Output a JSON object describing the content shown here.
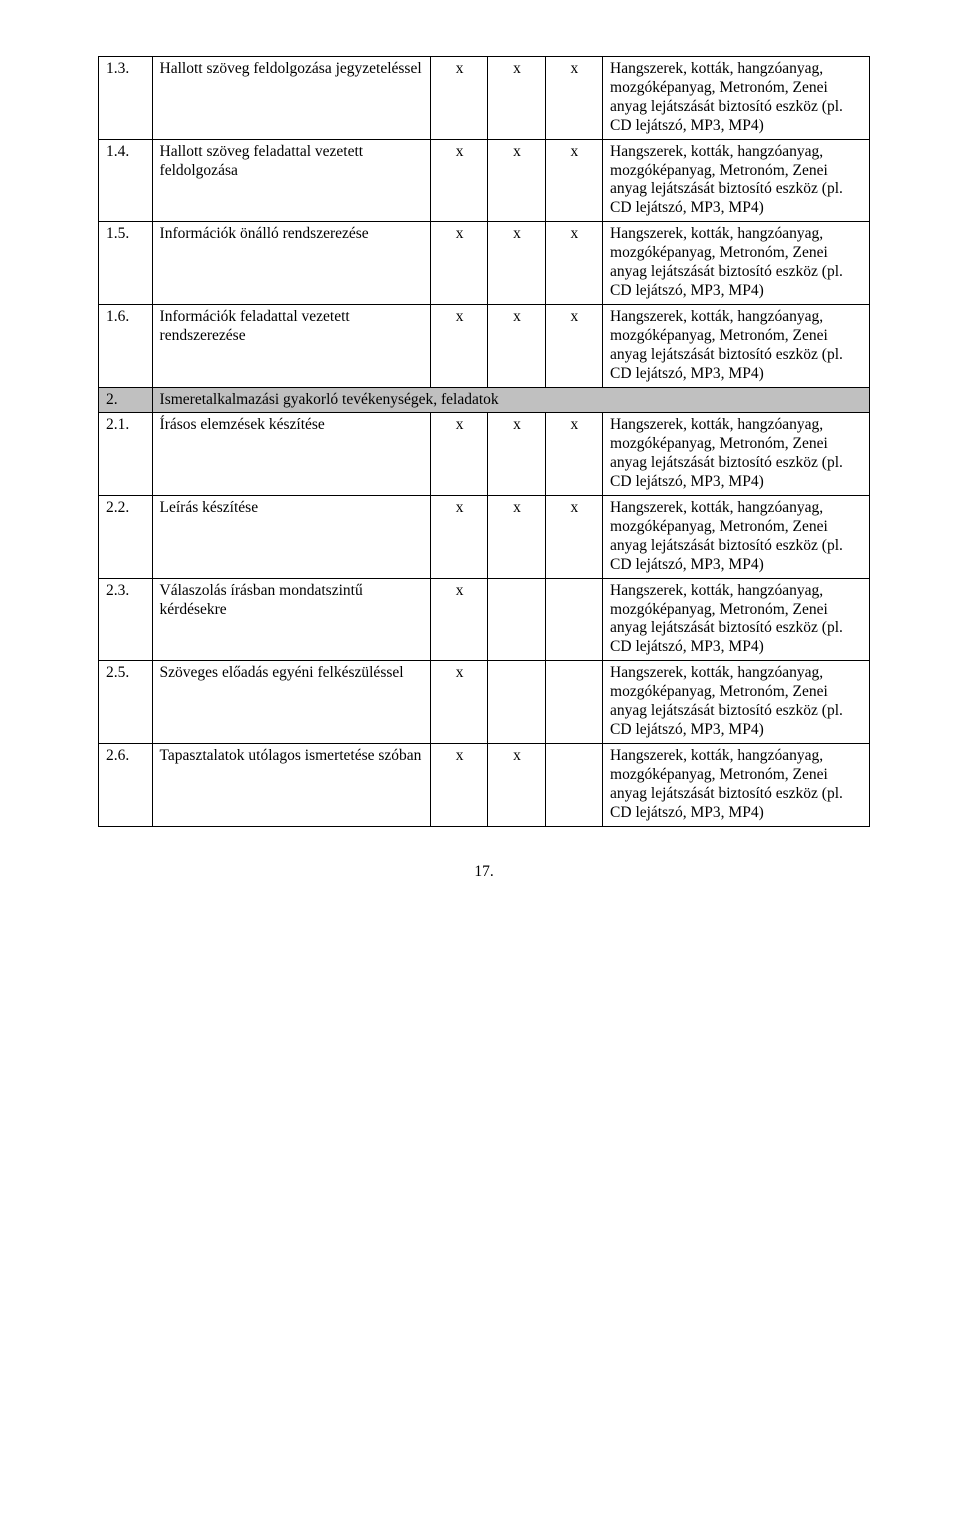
{
  "equip_text": "Hangszerek, kották, hangzóanyag, mozgóképanyag, Metronóm, Zenei anyag lejátszását biztosító eszköz (pl. CD lejátszó, MP3, MP4)",
  "x": "x",
  "rows": {
    "r13": {
      "num": "1.3.",
      "desc": "Hallott szöveg feldolgozása jegyzeteléssel"
    },
    "r14": {
      "num": "1.4.",
      "desc": "Hallott szöveg feladattal vezetett feldolgozása"
    },
    "r15": {
      "num": "1.5.",
      "desc": "Információk önálló rendszerezése"
    },
    "r16": {
      "num": "1.6.",
      "desc": "Információk feladattal vezetett rendszerezése"
    },
    "sec": {
      "num": "2.",
      "desc": "Ismeretalkalmazási gyakorló tevékenységek, feladatok"
    },
    "r21": {
      "num": "2.1.",
      "desc": "Írásos elemzések készítése"
    },
    "r22": {
      "num": "2.2.",
      "desc": "Leírás készítése"
    },
    "r23": {
      "num": "2.3.",
      "desc": "Válaszolás írásban mondatszintű kérdésekre"
    },
    "r25": {
      "num": "2.5.",
      "desc": "Szöveges előadás egyéni felkészüléssel"
    },
    "r26": {
      "num": "2.6.",
      "desc": "Tapasztalatok utólagos ismertetése szóban"
    }
  },
  "page_number": "17."
}
